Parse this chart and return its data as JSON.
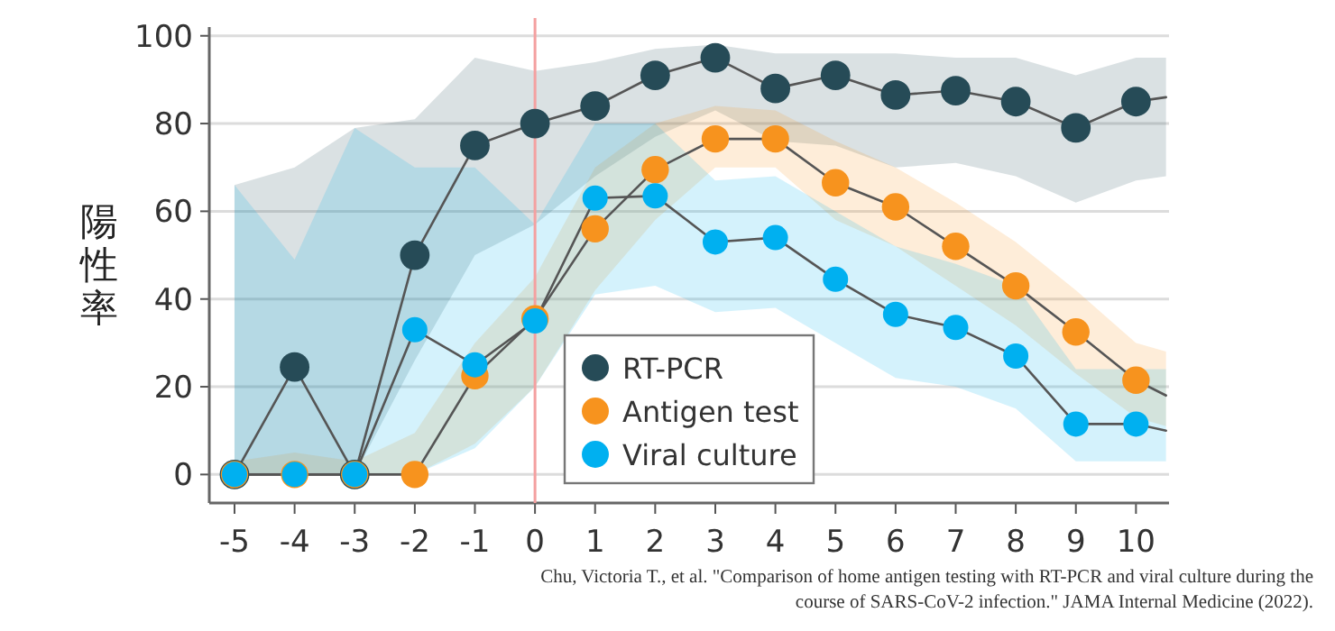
{
  "chart_data": {
    "type": "line",
    "ylabel": "陽性率",
    "x": [
      -5,
      -4,
      -3,
      -2,
      -1,
      0,
      1,
      2,
      3,
      4,
      5,
      6,
      7,
      8,
      9,
      10,
      10.5
    ],
    "xlim": [
      -5.42,
      10.55
    ],
    "xticks": [
      -5,
      -4,
      -3,
      -2,
      -1,
      0,
      1,
      2,
      3,
      4,
      5,
      6,
      7,
      8,
      9,
      10
    ],
    "ylim": [
      -6.5,
      102
    ],
    "yticks": [
      0,
      20,
      40,
      60,
      80,
      100
    ],
    "grid": "y",
    "legend": "bottom",
    "marker": "circle",
    "line_style": "solid",
    "series": [
      {
        "name": "RT-PCR",
        "color": "#264b57",
        "values": [
          0,
          24.5,
          0,
          50,
          75,
          80,
          84,
          91,
          95,
          88,
          91,
          86.5,
          87.5,
          85,
          79,
          85,
          86
        ],
        "lower": [
          0,
          0,
          0,
          26,
          50,
          57,
          68,
          77,
          83,
          76,
          75,
          70,
          71,
          68,
          62,
          67,
          68
        ],
        "upper": [
          66,
          70,
          79,
          81,
          95,
          92,
          94,
          97,
          98,
          96,
          96,
          96,
          95,
          95,
          91,
          95,
          95
        ]
      },
      {
        "name": "Antigen test",
        "color": "#f7931e",
        "values": [
          0,
          0,
          0,
          0,
          22.5,
          35.5,
          56,
          69.5,
          76.5,
          76.5,
          66.5,
          61,
          52,
          43,
          32.5,
          21.5,
          18
        ],
        "lower": [
          0,
          0,
          0,
          0,
          7,
          20,
          42,
          58,
          70,
          70,
          58,
          52,
          43,
          34,
          23,
          13,
          11
        ],
        "upper": [
          3,
          5,
          3,
          9.5,
          30,
          45,
          70,
          80,
          84,
          83,
          76,
          70,
          62,
          53,
          42,
          30,
          28
        ]
      },
      {
        "name": "Viral culture",
        "color": "#00b0f0",
        "values": [
          0,
          0,
          0,
          33,
          25,
          35,
          63,
          63.5,
          53,
          54,
          44.5,
          36.5,
          33.5,
          27,
          11.5,
          11.5,
          10
        ],
        "lower": [
          0,
          0,
          0,
          0,
          6,
          20,
          41,
          43,
          37,
          38,
          30,
          22,
          20,
          15,
          3,
          3,
          3
        ],
        "upper": [
          66,
          49,
          79,
          70,
          70,
          57,
          80,
          80,
          67,
          68,
          60,
          52,
          48,
          43,
          24,
          24,
          24
        ]
      }
    ],
    "ref_lines": [
      {
        "axis": "x",
        "value": 0,
        "color": "#f4a0a0"
      }
    ],
    "annotations": [
      "Chu, Victoria T., et al. \"Comparison of home antigen testing with RT-PCR and viral culture during the course of SARS-CoV-2 infection.\" JAMA Internal Medicine (2022)."
    ]
  }
}
